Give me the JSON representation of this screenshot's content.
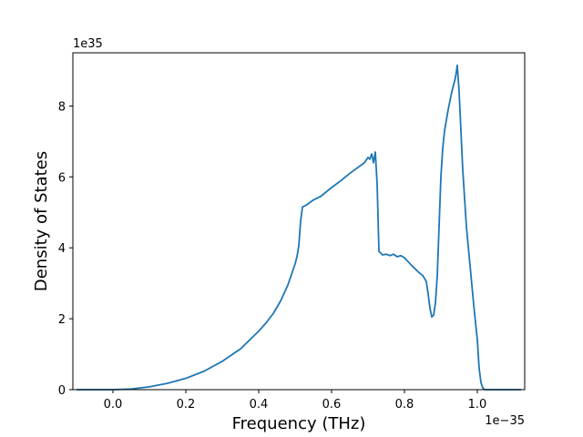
{
  "chart_data": {
    "type": "line",
    "xlabel": "Frequency (THz)",
    "ylabel": "Density of States",
    "x_offset_text": "1e−35",
    "y_offset_text": "1e35",
    "xlim": [
      -0.11,
      1.13
    ],
    "ylim": [
      0,
      9.5
    ],
    "x_ticks": [
      0.0,
      0.2,
      0.4,
      0.6,
      0.8,
      1.0
    ],
    "x_tick_labels": [
      "0.0",
      "0.2",
      "0.4",
      "0.6",
      "0.8",
      "1.0"
    ],
    "y_ticks": [
      0,
      2,
      4,
      6,
      8
    ],
    "y_tick_labels": [
      "0",
      "2",
      "4",
      "6",
      "8"
    ],
    "grid": false,
    "line_color": "#1f77b4",
    "series": [
      {
        "x": [
          -0.1,
          -0.05,
          0.0,
          0.05,
          0.1,
          0.15,
          0.2,
          0.25,
          0.3,
          0.35,
          0.4,
          0.42,
          0.44,
          0.46,
          0.48,
          0.5,
          0.505,
          0.51,
          0.515,
          0.52,
          0.53,
          0.55,
          0.57,
          0.6,
          0.62,
          0.65,
          0.67,
          0.69,
          0.7,
          0.705,
          0.71,
          0.715,
          0.72,
          0.725,
          0.73,
          0.74,
          0.75,
          0.76,
          0.77,
          0.78,
          0.79,
          0.8,
          0.82,
          0.84,
          0.85,
          0.86,
          0.865,
          0.87,
          0.875,
          0.88,
          0.885,
          0.89,
          0.895,
          0.9,
          0.905,
          0.91,
          0.92,
          0.93,
          0.94,
          0.945,
          0.95,
          0.955,
          0.96,
          0.97,
          0.98,
          0.99,
          1.0,
          1.005,
          1.01,
          1.015,
          1.02,
          1.05,
          1.08,
          1.12
        ],
        "y": [
          0.0,
          0.0,
          0.0,
          0.02,
          0.08,
          0.18,
          0.32,
          0.52,
          0.8,
          1.15,
          1.65,
          1.88,
          2.15,
          2.5,
          2.95,
          3.55,
          3.75,
          4.05,
          4.75,
          5.15,
          5.2,
          5.35,
          5.45,
          5.7,
          5.85,
          6.1,
          6.25,
          6.4,
          6.55,
          6.5,
          6.65,
          6.4,
          6.7,
          5.8,
          3.9,
          3.8,
          3.82,
          3.78,
          3.82,
          3.75,
          3.78,
          3.72,
          3.5,
          3.3,
          3.22,
          3.05,
          2.7,
          2.3,
          2.05,
          2.1,
          2.45,
          3.2,
          4.6,
          6.0,
          6.8,
          7.3,
          7.9,
          8.4,
          8.8,
          9.15,
          8.4,
          7.3,
          6.2,
          4.6,
          3.5,
          2.4,
          1.4,
          0.6,
          0.2,
          0.05,
          0.0,
          0.0,
          0.0,
          0.0
        ]
      }
    ]
  }
}
